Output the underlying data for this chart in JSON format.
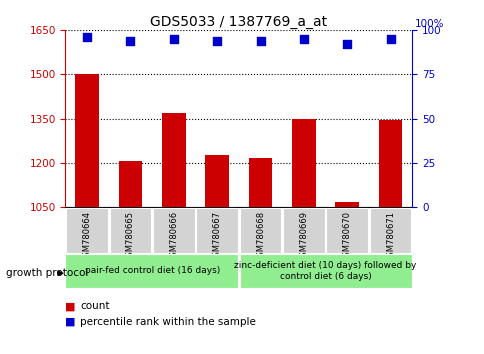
{
  "title": "GDS5033 / 1387769_a_at",
  "samples": [
    "GSM780664",
    "GSM780665",
    "GSM780666",
    "GSM780667",
    "GSM780668",
    "GSM780669",
    "GSM780670",
    "GSM780671"
  ],
  "counts": [
    1500,
    1207,
    1370,
    1225,
    1215,
    1348,
    1068,
    1345
  ],
  "percentiles": [
    96,
    94,
    95,
    94,
    94,
    95,
    92,
    95
  ],
  "ylim_left": [
    1050,
    1650
  ],
  "ylim_right": [
    0,
    100
  ],
  "yticks_left": [
    1050,
    1200,
    1350,
    1500,
    1650
  ],
  "yticks_right": [
    0,
    25,
    50,
    75,
    100
  ],
  "bar_color": "#cc0000",
  "dot_color": "#0000cc",
  "left_tick_color": "#cc0000",
  "right_tick_color": "#0000cc",
  "group1_label": "pair-fed control diet (16 days)",
  "group2_label": "zinc-deficient diet (10 days) followed by\ncontrol diet (6 days)",
  "group1_bg": "#90ee90",
  "group2_bg": "#90ee90",
  "sample_bg": "#d3d3d3",
  "growth_protocol_label": "growth protocol",
  "legend_count_label": "count",
  "legend_pct_label": "percentile rank within the sample",
  "right_axis_top_label": "100%"
}
